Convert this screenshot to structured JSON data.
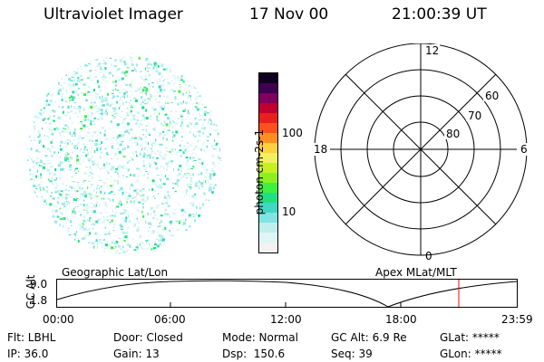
{
  "header": {
    "instrument": "Ultraviolet Imager",
    "date": "17 Nov 00",
    "time": "21:00:39 UT"
  },
  "colorbar": {
    "unit_label": "photon cm-2s-1",
    "ticks": [
      "100",
      "10"
    ],
    "colors": [
      "#f2f2f2",
      "#dff6f6",
      "#bfeeee",
      "#7fe4e4",
      "#40d8c0",
      "#20e080",
      "#40f040",
      "#8cf020",
      "#c8f020",
      "#f0f060",
      "#ffd040",
      "#ff9020",
      "#ff5020",
      "#e82020",
      "#c00030",
      "#800060",
      "#400050",
      "#100020"
    ]
  },
  "geographic_panel": {
    "label": "Geographic Lat/Lon"
  },
  "polar_plot": {
    "label": "Apex MLat/MLT",
    "mlt_labels": {
      "top": "12",
      "left": "18",
      "right": "6",
      "bottom": "0"
    },
    "lat_labels": [
      "60",
      "70",
      "80"
    ]
  },
  "altitude_strip": {
    "ylabel": "GC Alt",
    "yticks": [
      "9.0",
      "1.8"
    ],
    "xticks": [
      "00:00",
      "06:00",
      "12:00",
      "18:00",
      "23:59"
    ],
    "marker_color": "#ff0000"
  },
  "footer": {
    "col1": [
      "Flt: LBHL",
      "IP: 36.0"
    ],
    "col2": [
      "Door: Closed",
      "Gain: 13"
    ],
    "col3": [
      "Mode: Normal",
      "Dsp:  150.6"
    ],
    "col4": [
      "GC Alt: 6.9 Re",
      "Seq: 39"
    ],
    "col5": [
      "GLat: *****",
      "GLon: *****"
    ]
  }
}
